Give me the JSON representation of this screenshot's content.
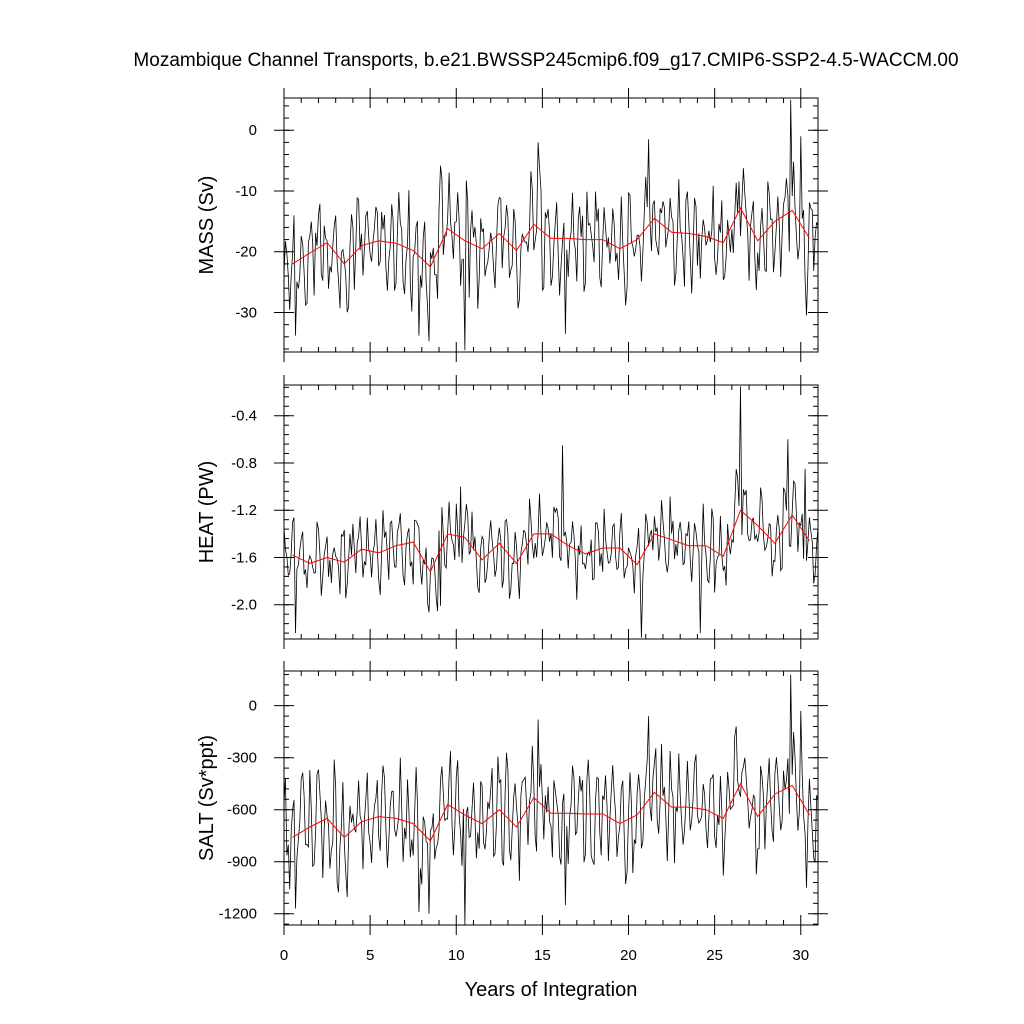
{
  "title": "Mozambique Channel Transports, b.e21.BWSSP245cmip6.f09_g17.CMIP6-SSP2-4.5-WACCM.00",
  "xlabel": "Years of Integration",
  "colors": {
    "monthly": "#000000",
    "annual": "#ff0000",
    "frame": "#000000"
  },
  "chart_data": [
    {
      "type": "line",
      "ylabel": "MASS (Sv)",
      "xlim": [
        0,
        31
      ],
      "ylim": [
        -36.5,
        5.3
      ],
      "x_ticks": [
        0,
        5,
        10,
        15,
        20,
        25,
        30
      ],
      "x_tick_labels": [
        "0",
        "5",
        "10",
        "15",
        "20",
        "25",
        "30"
      ],
      "y_ticks": [
        -30,
        -20,
        -10,
        0
      ],
      "y_tick_labels": [
        "-30",
        "-20",
        "-10",
        "0"
      ],
      "annual_x": [
        0.5,
        1.5,
        2.5,
        3.5,
        4.5,
        5.5,
        6.5,
        7.5,
        8.5,
        9.5,
        10.5,
        11.5,
        12.5,
        13.5,
        14.5,
        15.5,
        16.5,
        17.5,
        18.5,
        19.5,
        20.5,
        21.5,
        22.5,
        23.5,
        24.5,
        25.5,
        26.5,
        27.5,
        28.5,
        29.5,
        30.5
      ],
      "annual_values": [
        -22.0,
        -20.2,
        -18.5,
        -22.0,
        -19.0,
        -18.2,
        -18.6,
        -19.8,
        -22.5,
        -16.2,
        -18.2,
        -19.5,
        -17.0,
        -19.8,
        -15.5,
        -17.8,
        -17.8,
        -18.0,
        -18.0,
        -19.5,
        -18.0,
        -14.5,
        -16.8,
        -17.0,
        -17.5,
        -18.5,
        -12.8,
        -18.2,
        -15.0,
        -13.2,
        -17.8
      ],
      "monthly_mean": [
        -22.0,
        -20.2,
        -18.5,
        -22.0,
        -19.0,
        -18.2,
        -18.6,
        -19.8,
        -22.5,
        -16.2,
        -18.2,
        -19.5,
        -17.0,
        -19.8,
        -15.5,
        -17.8,
        -17.8,
        -18.0,
        -18.0,
        -19.5,
        -18.0,
        -14.5,
        -16.8,
        -17.0,
        -17.5,
        -18.5,
        -12.8,
        -18.2,
        -15.0,
        -13.2,
        -17.8
      ],
      "monthly_amplitude": 8.0,
      "spikes": [
        [
          0.67,
          -33.8
        ],
        [
          7.83,
          -33.8
        ],
        [
          8.42,
          -34.7
        ],
        [
          10.5,
          -36.2
        ],
        [
          14.75,
          -2.0
        ],
        [
          16.33,
          -33.5
        ],
        [
          21.17,
          -1.5
        ],
        [
          29.42,
          5.0
        ],
        [
          30.0,
          -1.0
        ],
        [
          30.33,
          -30.5
        ]
      ]
    },
    {
      "type": "line",
      "ylabel": "HEAT (PW)",
      "xlim": [
        0,
        31
      ],
      "ylim": [
        -2.29,
        -0.14
      ],
      "x_ticks": [
        0,
        5,
        10,
        15,
        20,
        25,
        30
      ],
      "x_tick_labels": [
        "0",
        "5",
        "10",
        "15",
        "20",
        "25",
        "30"
      ],
      "y_ticks": [
        -2.0,
        -1.6,
        -1.2,
        -0.8,
        -0.4
      ],
      "y_tick_labels": [
        "-2.0",
        "-1.6",
        "-1.2",
        "-0.8",
        "-0.4"
      ],
      "annual_x": [
        0.5,
        1.5,
        2.5,
        3.5,
        4.5,
        5.5,
        6.5,
        7.5,
        8.5,
        9.5,
        10.5,
        11.5,
        12.5,
        13.5,
        14.5,
        15.5,
        16.5,
        17.5,
        18.5,
        19.5,
        20.5,
        21.5,
        22.5,
        23.5,
        24.5,
        25.5,
        26.5,
        27.5,
        28.5,
        29.5,
        30.5
      ],
      "annual_values": [
        -1.58,
        -1.65,
        -1.6,
        -1.64,
        -1.53,
        -1.56,
        -1.5,
        -1.47,
        -1.72,
        -1.4,
        -1.43,
        -1.62,
        -1.48,
        -1.65,
        -1.4,
        -1.4,
        -1.5,
        -1.57,
        -1.52,
        -1.52,
        -1.66,
        -1.4,
        -1.45,
        -1.5,
        -1.5,
        -1.59,
        -1.2,
        -1.33,
        -1.48,
        -1.24,
        -1.46
      ],
      "monthly_mean": [
        -1.58,
        -1.65,
        -1.6,
        -1.64,
        -1.53,
        -1.56,
        -1.5,
        -1.47,
        -1.72,
        -1.4,
        -1.43,
        -1.62,
        -1.48,
        -1.65,
        -1.4,
        -1.4,
        -1.5,
        -1.57,
        -1.52,
        -1.52,
        -1.66,
        -1.4,
        -1.45,
        -1.5,
        -1.5,
        -1.59,
        -1.2,
        -1.33,
        -1.48,
        -1.24,
        -1.46
      ],
      "monthly_amplitude": 0.3,
      "spikes": [
        [
          0.67,
          -2.24
        ],
        [
          9.08,
          -2.01
        ],
        [
          10.25,
          -1.0
        ],
        [
          16.17,
          -0.65
        ],
        [
          20.75,
          -2.28
        ],
        [
          24.17,
          -2.24
        ],
        [
          26.5,
          -0.15
        ],
        [
          29.25,
          -0.6
        ],
        [
          30.25,
          -0.85
        ]
      ]
    },
    {
      "type": "line",
      "ylabel": "SALT (Sv*ppt)",
      "xlim": [
        0,
        31
      ],
      "ylim": [
        -1265,
        200
      ],
      "x_ticks": [
        0,
        5,
        10,
        15,
        20,
        25,
        30
      ],
      "x_tick_labels": [
        "0",
        "5",
        "10",
        "15",
        "20",
        "25",
        "30"
      ],
      "y_ticks": [
        -1200,
        -900,
        -600,
        -300,
        0
      ],
      "y_tick_labels": [
        "-1200",
        "-900",
        "-600",
        "-300",
        "0"
      ],
      "annual_x": [
        0.5,
        1.5,
        2.5,
        3.5,
        4.5,
        5.5,
        6.5,
        7.5,
        8.5,
        9.5,
        10.5,
        11.5,
        12.5,
        13.5,
        14.5,
        15.5,
        16.5,
        17.5,
        18.5,
        19.5,
        20.5,
        21.5,
        22.5,
        23.5,
        24.5,
        25.5,
        26.5,
        27.5,
        28.5,
        29.5,
        30.5
      ],
      "annual_values": [
        -760,
        -700,
        -650,
        -760,
        -670,
        -640,
        -650,
        -680,
        -780,
        -570,
        -630,
        -680,
        -600,
        -700,
        -530,
        -620,
        -620,
        -625,
        -625,
        -680,
        -630,
        -500,
        -585,
        -585,
        -600,
        -650,
        -450,
        -640,
        -510,
        -460,
        -630
      ],
      "monthly_mean": [
        -760,
        -700,
        -650,
        -760,
        -670,
        -640,
        -650,
        -680,
        -780,
        -570,
        -630,
        -680,
        -600,
        -700,
        -530,
        -620,
        -620,
        -625,
        -625,
        -680,
        -630,
        -500,
        -585,
        -585,
        -600,
        -650,
        -450,
        -640,
        -510,
        -460,
        -630
      ],
      "monthly_amplitude": 280,
      "spikes": [
        [
          0.67,
          -1170
        ],
        [
          7.83,
          -1190
        ],
        [
          8.42,
          -1200
        ],
        [
          10.5,
          -1265
        ],
        [
          14.75,
          -80
        ],
        [
          16.33,
          -1150
        ],
        [
          21.17,
          -60
        ],
        [
          29.42,
          180
        ],
        [
          30.0,
          -30
        ],
        [
          30.33,
          -1050
        ]
      ]
    }
  ]
}
